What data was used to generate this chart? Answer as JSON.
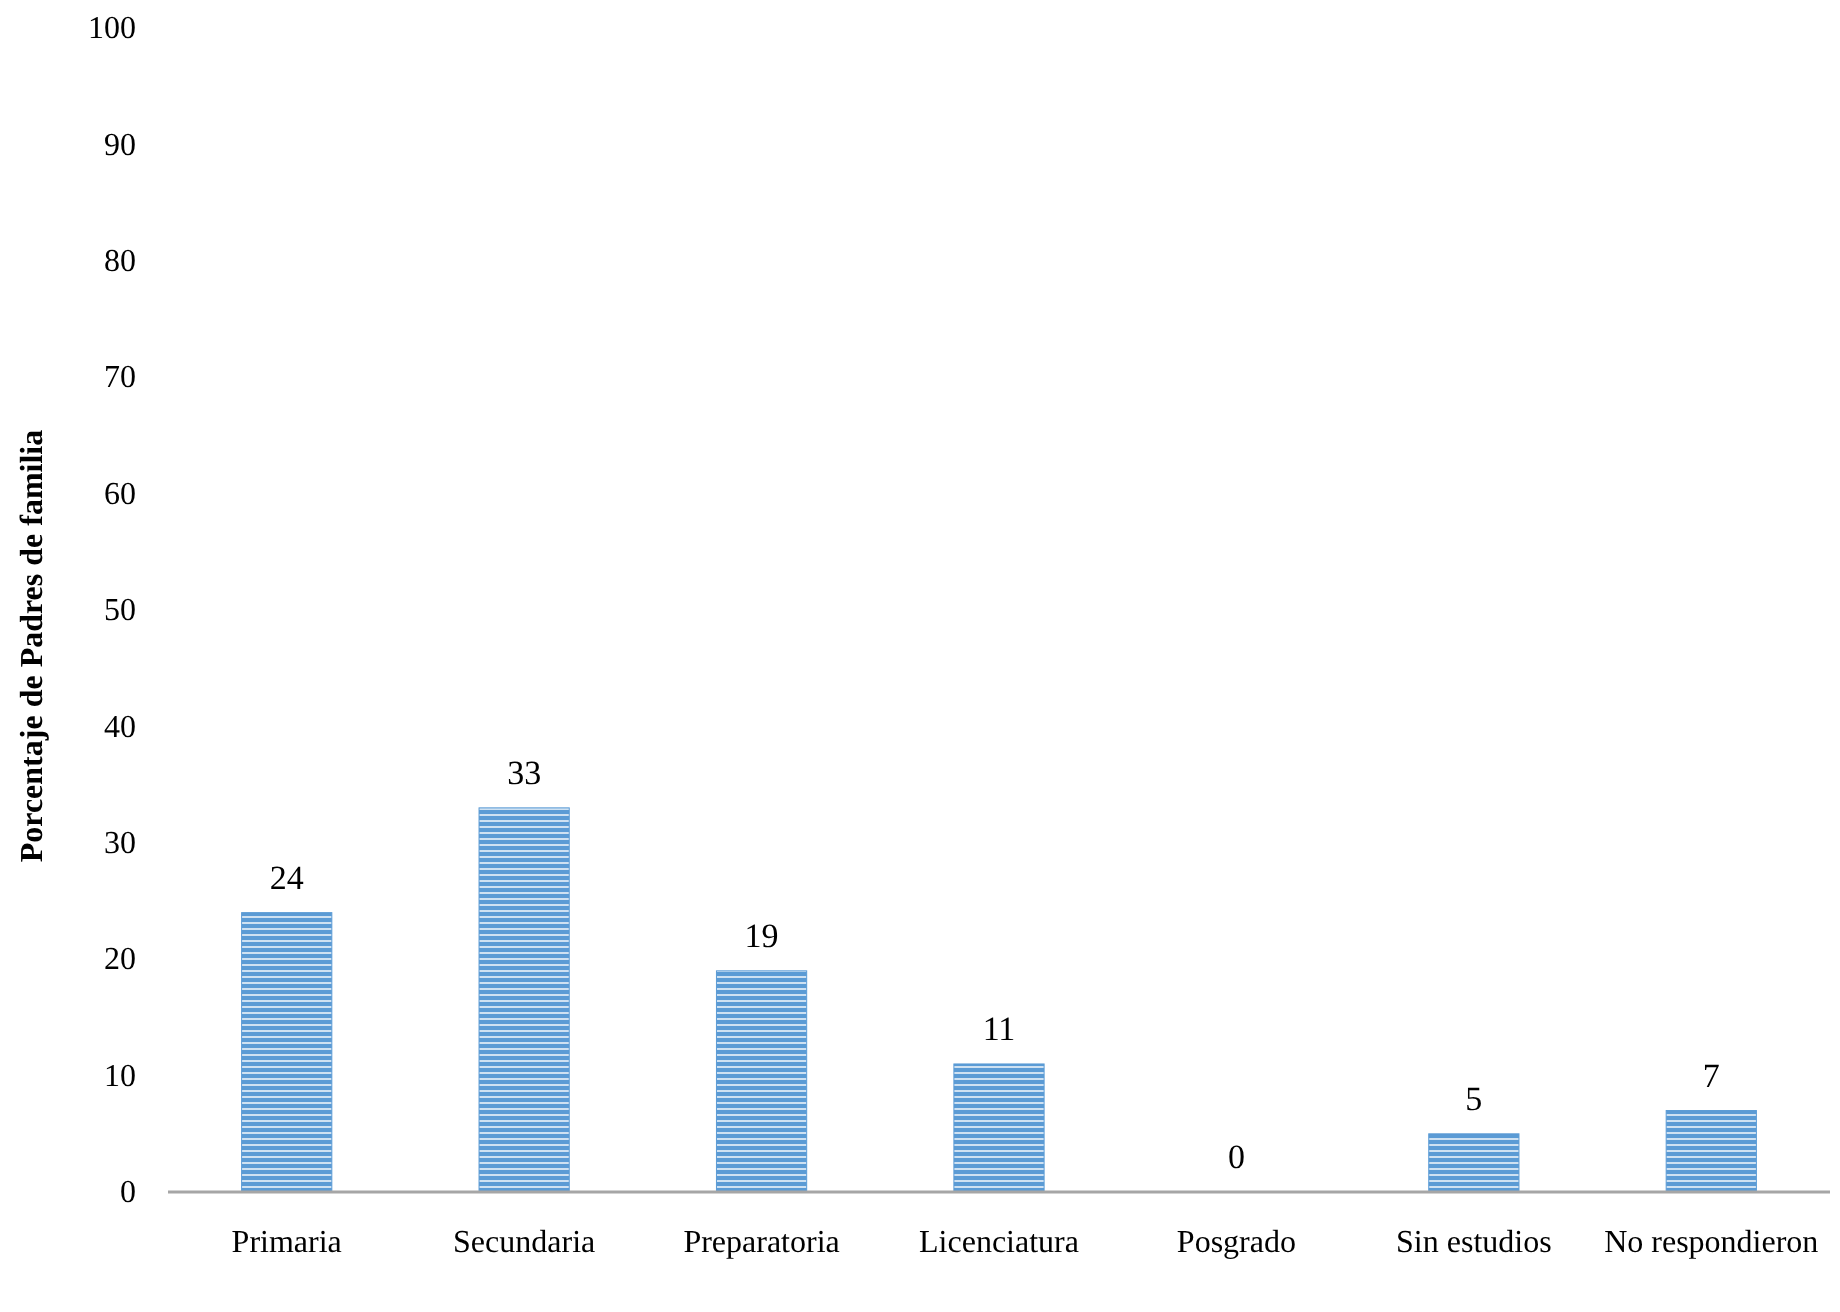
{
  "chart_data": {
    "type": "bar",
    "ylabel": "Porcentaje de Padres de familia",
    "categories": [
      "Primaria",
      "Secundaria",
      "Preparatoria",
      "Licenciatura",
      "Posgrado",
      "Sin estudios",
      "No respondieron"
    ],
    "values": [
      24,
      33,
      19,
      11,
      0,
      5,
      7
    ],
    "color": "#5b9bd5",
    "ylim": [
      0,
      100
    ],
    "yticks": [
      0,
      10,
      20,
      30,
      40,
      50,
      60,
      70,
      80,
      90,
      100
    ],
    "grid": false,
    "data_labels": true
  }
}
